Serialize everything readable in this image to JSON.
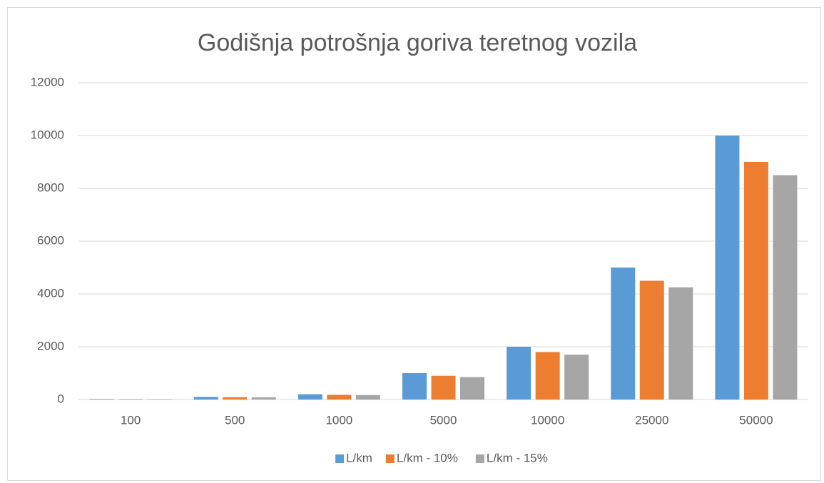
{
  "chart_data": {
    "type": "bar",
    "title": "Godišnja potrošnja goriva teretnog vozila",
    "categories": [
      "100",
      "500",
      "1000",
      "5000",
      "10000",
      "25000",
      "50000"
    ],
    "series": [
      {
        "name": "L/km",
        "color": "#5b9bd5",
        "values": [
          20,
          100,
          200,
          1000,
          2000,
          5000,
          10000
        ]
      },
      {
        "name": "L/km - 10%",
        "color": "#ed7d31",
        "values": [
          18,
          90,
          180,
          900,
          1800,
          4500,
          9000
        ]
      },
      {
        "name": "L/km - 15%",
        "color": "#a5a5a5",
        "values": [
          17,
          85,
          170,
          850,
          1700,
          4250,
          8500
        ]
      }
    ],
    "ylim": [
      0,
      12000
    ],
    "yticks": [
      0,
      2000,
      4000,
      6000,
      8000,
      10000,
      12000
    ],
    "grid": true,
    "legend": "bottom"
  }
}
